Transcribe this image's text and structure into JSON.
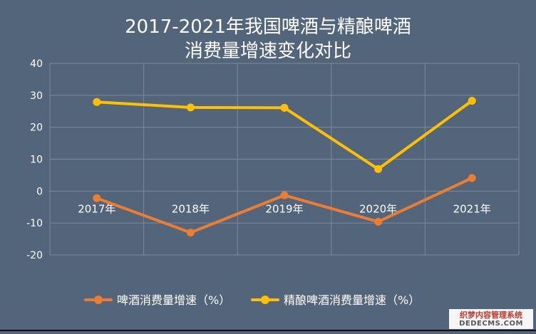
{
  "chart_data": {
    "type": "line",
    "title_line1": "2017-2021年我国啤酒与精酿啤酒",
    "title_line2": "消费量增速变化对比",
    "categories": [
      "2017年",
      "2018年",
      "2019年",
      "2020年",
      "2021年"
    ],
    "series": [
      {
        "name": "啤酒消费量增速（%）",
        "values": [
          -2.2,
          -13.0,
          -1.3,
          -9.6,
          4.1
        ],
        "color": "#ed7d31"
      },
      {
        "name": "精酿啤酒消费量增速（%）",
        "values": [
          27.9,
          26.2,
          26.1,
          6.9,
          28.3
        ],
        "color": "#ffc000"
      }
    ],
    "ylim": [
      -20,
      40
    ],
    "yticks": [
      "-20",
      "-10",
      "0",
      "10",
      "20",
      "30",
      "40"
    ],
    "grid": true,
    "legend_position": "bottom"
  },
  "watermark": {
    "line1": "织梦内容管理系统",
    "line2": "DEDECMS.COM"
  }
}
